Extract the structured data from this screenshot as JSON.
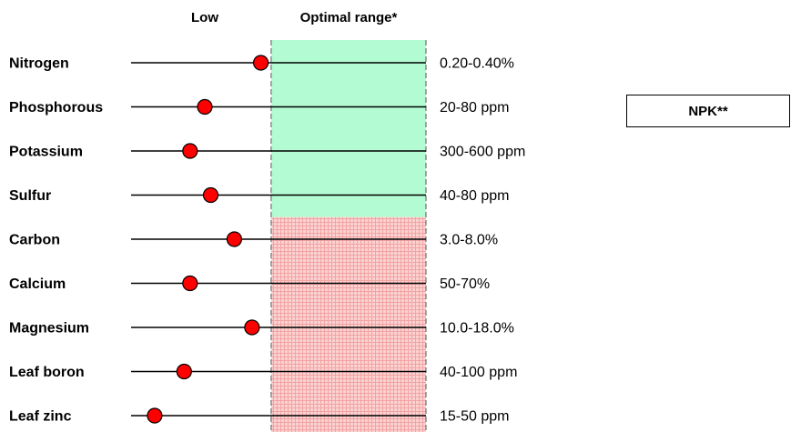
{
  "chart_data": {
    "type": "dot",
    "headers": {
      "low": "Low",
      "optimal": "Optimal range*"
    },
    "scale": [
      0,
      1
    ],
    "optimal_zone": [
      0.475,
      1.0
    ],
    "categories": [
      "Nitrogen",
      "Phosphorous",
      "Potassium",
      "Sulfur",
      "Carbon",
      "Calcium",
      "Magnesium",
      "Leaf boron",
      "Leaf zinc"
    ],
    "ranges": [
      "0.20-0.40%",
      "20-80 ppm",
      "300-600 ppm",
      "40-80 ppm",
      "3.0-8.0%",
      "50-70%",
      "10.0-18.0%",
      "40-100 ppm",
      "15-50 ppm"
    ],
    "values": [
      0.44,
      0.25,
      0.2,
      0.27,
      0.35,
      0.2,
      0.41,
      0.18,
      0.08
    ],
    "npk_group": [
      "Nitrogen",
      "Phosphorous",
      "Potassium",
      "Sulfur"
    ],
    "colors": {
      "npk_zone": "#b3fcd3",
      "other_zone": "#fbd3d3",
      "other_zone_grid": "#f2a3a3",
      "marker": "#ff0000",
      "line": "#000000"
    }
  },
  "legend": {
    "npk_label": "NPK**"
  }
}
